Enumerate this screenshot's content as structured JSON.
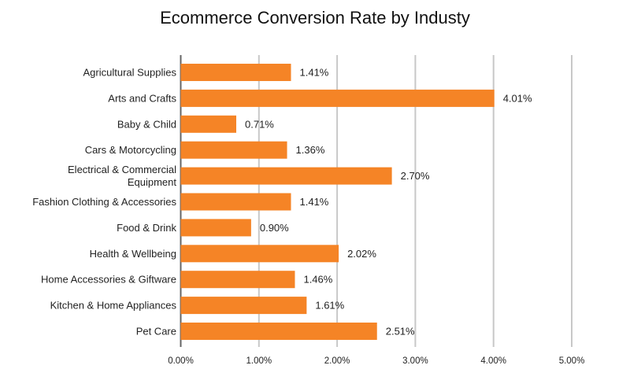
{
  "chart_data": {
    "type": "bar",
    "orientation": "horizontal",
    "title": "Ecommerce Conversion Rate by Industy",
    "xlabel": "",
    "ylabel": "",
    "categories": [
      [
        "Agricultural Supplies"
      ],
      [
        "Arts and Crafts"
      ],
      [
        "Baby & Child"
      ],
      [
        "Cars & Motorcycling"
      ],
      [
        "Electrical & Commercial",
        "Equipment"
      ],
      [
        "Fashion Clothing & Accessories"
      ],
      [
        "Food & Drink"
      ],
      [
        "Health & Wellbeing"
      ],
      [
        "Home Accessories & Giftware"
      ],
      [
        "Kitchen & Home Appliances"
      ],
      [
        "Pet Care"
      ]
    ],
    "values": [
      1.41,
      4.01,
      0.71,
      1.36,
      2.7,
      1.41,
      0.9,
      2.02,
      1.46,
      1.61,
      2.51
    ],
    "value_labels": [
      "1.41%",
      "4.01%",
      "0.71%",
      "1.36%",
      "2.70%",
      "1.41%",
      "0.90%",
      "2.02%",
      "1.46%",
      "1.61%",
      "2.51%"
    ],
    "xlim": [
      0,
      5
    ],
    "xticks": [
      0,
      1,
      2,
      3,
      4,
      5
    ],
    "xtick_labels": [
      "0.00%",
      "1.00%",
      "2.00%",
      "3.00%",
      "4.00%",
      "5.00%"
    ],
    "grid": "vertical",
    "legend": "none",
    "colors": {
      "bar": "#F58426",
      "grid": "#C8C8C8",
      "axis": "#666666"
    }
  }
}
